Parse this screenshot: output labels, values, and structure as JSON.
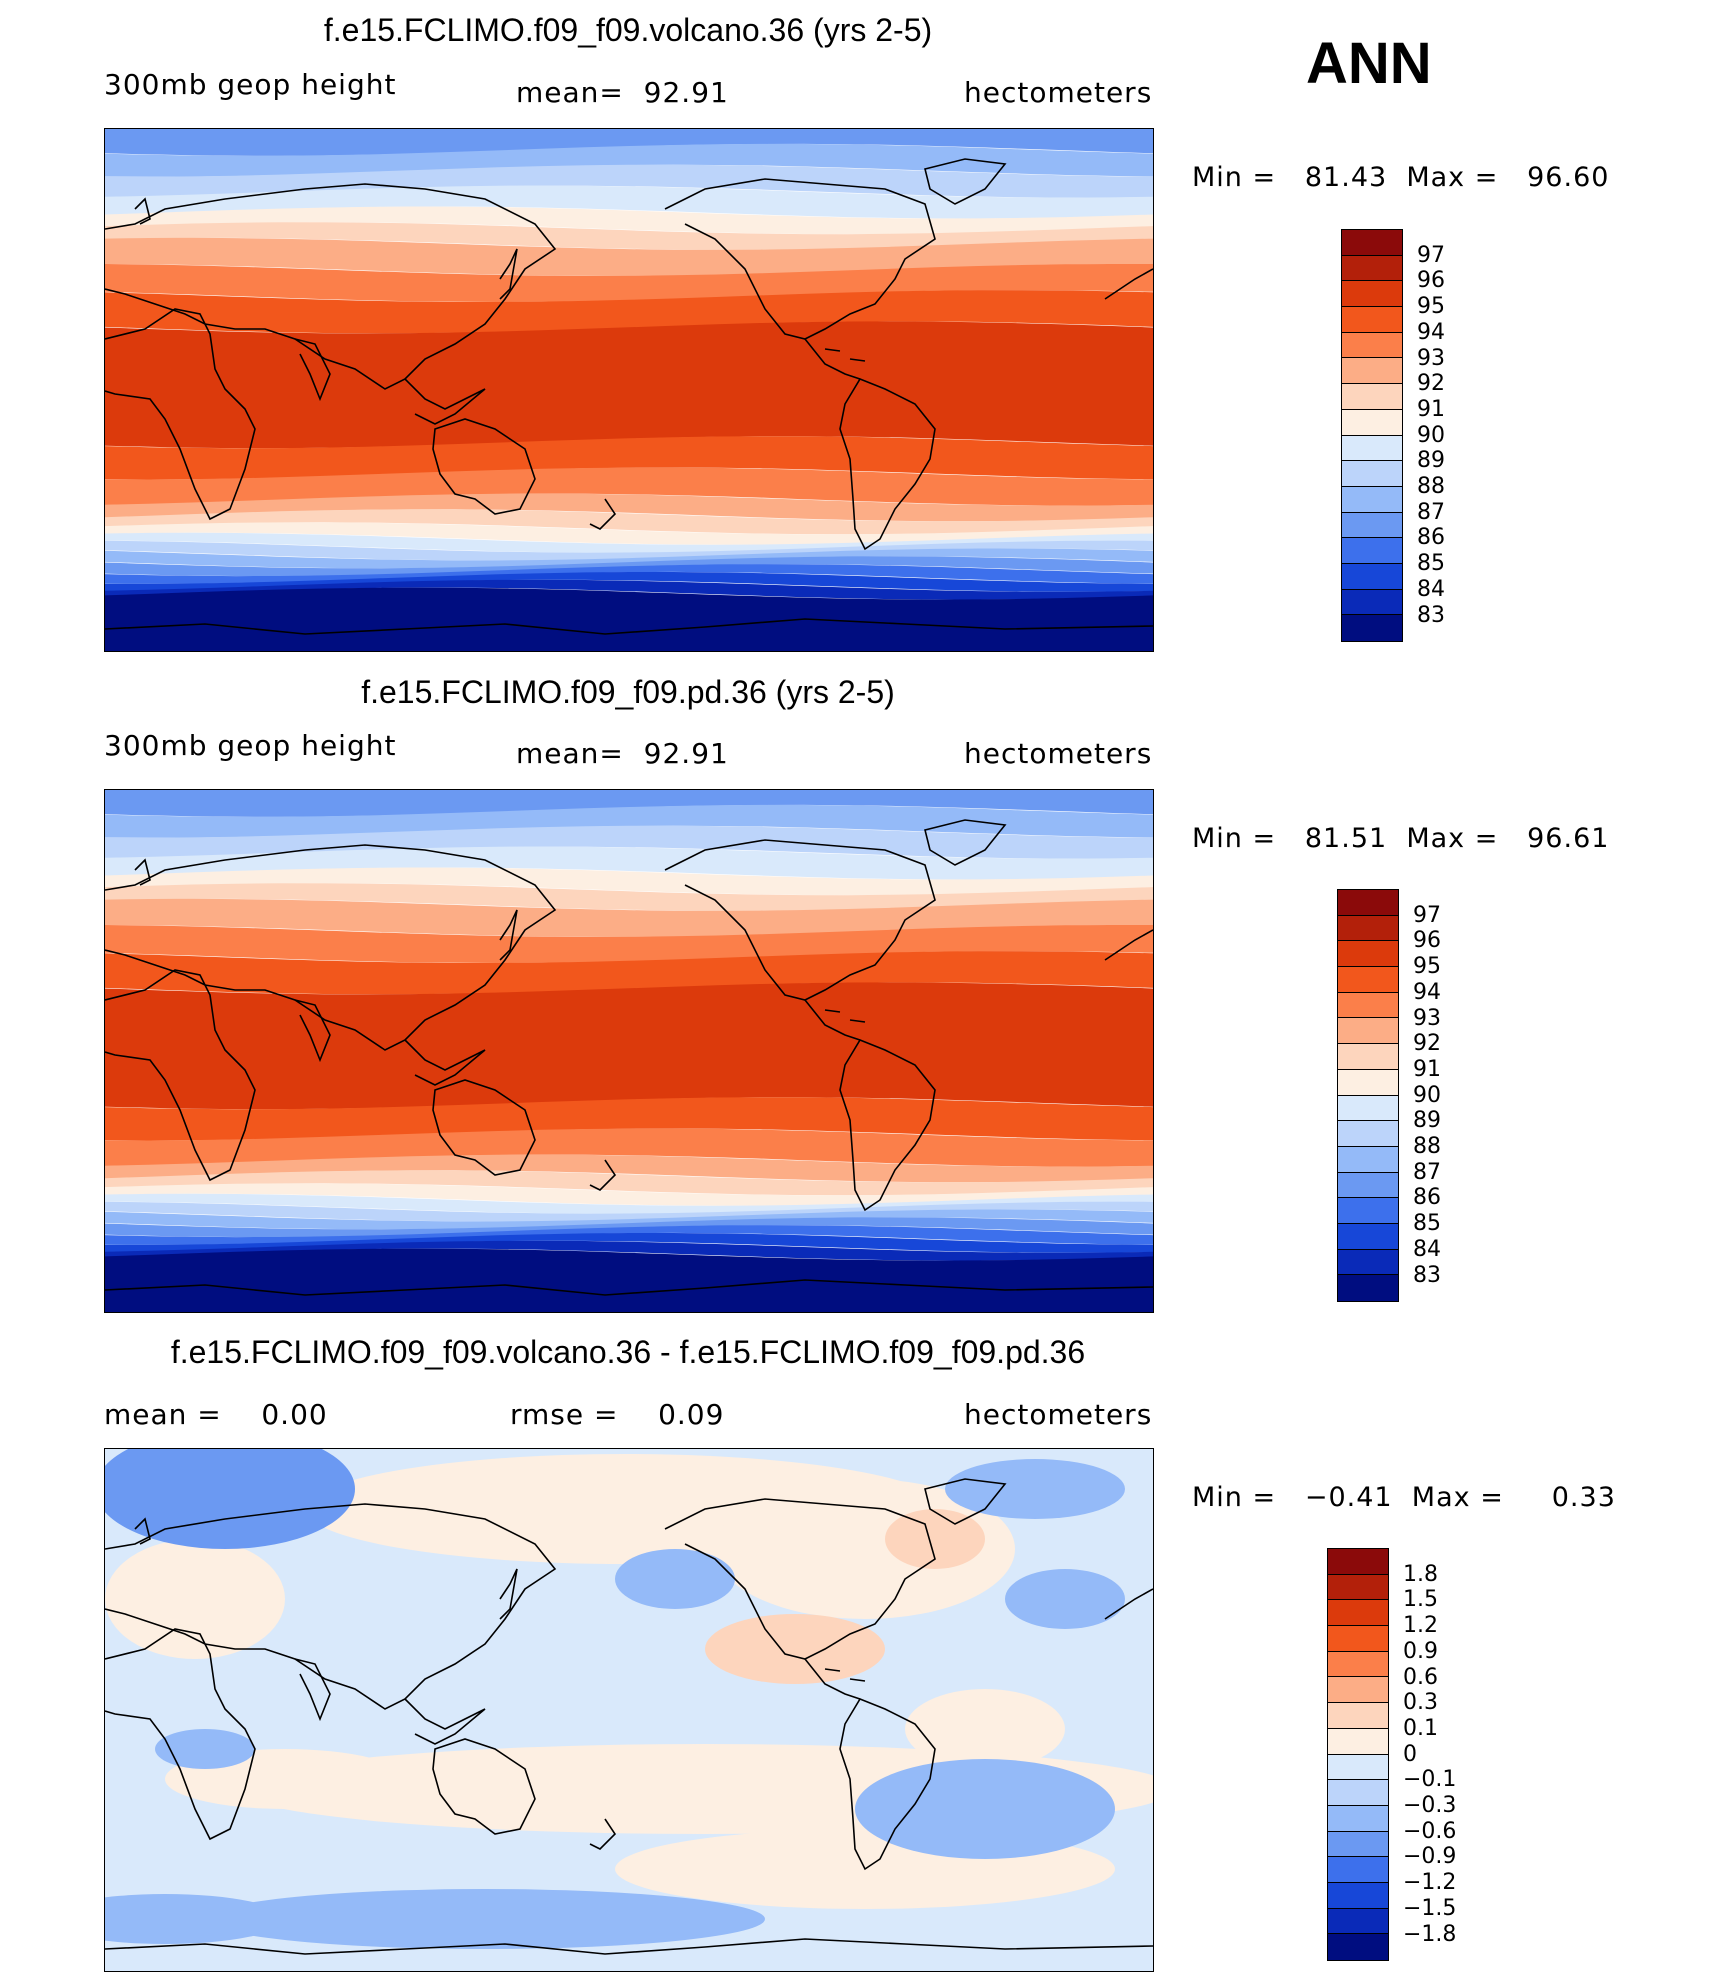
{
  "season_label": "ANN",
  "units": "hectometers",
  "variable": "300mb geop height",
  "panels": [
    {
      "title": "f.e15.FCLIMO.f09_f09.volcano.36 (yrs 2-5)",
      "left_label": "300mb geop height",
      "stat_text": "mean=  92.91",
      "units_text": "hectometers",
      "min_label": "Min =",
      "min_value": "81.43",
      "max_label": "Max =",
      "max_value": "96.60",
      "colorbar_labels": [
        "97",
        "96",
        "95",
        "94",
        "93",
        "92",
        "91",
        "90",
        "89",
        "88",
        "87",
        "86",
        "85",
        "84",
        "83"
      ]
    },
    {
      "title": "f.e15.FCLIMO.f09_f09.pd.36 (yrs 2-5)",
      "left_label": "300mb geop height",
      "stat_text": "mean=  92.91",
      "units_text": "hectometers",
      "min_label": "Min =",
      "min_value": "81.51",
      "max_label": "Max =",
      "max_value": "96.61",
      "colorbar_labels": [
        "97",
        "96",
        "95",
        "94",
        "93",
        "92",
        "91",
        "90",
        "89",
        "88",
        "87",
        "86",
        "85",
        "84",
        "83"
      ]
    },
    {
      "title": "f.e15.FCLIMO.f09_f09.volcano.36 - f.e15.FCLIMO.f09_f09.pd.36",
      "left_label": "mean =    0.00",
      "stat_text": "rmse =    0.09",
      "units_text": "hectometers",
      "min_label": "Min =",
      "min_value": "−0.41",
      "max_label": "Max =",
      "max_value": "0.33",
      "colorbar_labels": [
        "1.8",
        "1.5",
        "1.2",
        "0.9",
        "0.6",
        "0.3",
        "0.1",
        "0",
        "−0.1",
        "−0.3",
        "−0.6",
        "−0.9",
        "−1.2",
        "−1.5",
        "−1.8"
      ]
    }
  ],
  "colors": {
    "abs_scale": [
      "#8b0a0a",
      "#b3200a",
      "#dc3a0c",
      "#f2571c",
      "#fb7f4a",
      "#fcad86",
      "#fdd5bd",
      "#fdefe2",
      "#d9e9fb",
      "#bcd4fa",
      "#94baf8",
      "#6b99f2",
      "#3d70ec",
      "#1747d8",
      "#0a2ab8",
      "#000d80"
    ],
    "diff_scale": [
      "#8b0a0a",
      "#b3200a",
      "#dc3a0c",
      "#f2571c",
      "#fb7f4a",
      "#fcad86",
      "#fdd5bd",
      "#fdefe2",
      "#d9e9fb",
      "#bcd4fa",
      "#94baf8",
      "#6b99f2",
      "#3d70ec",
      "#1747d8",
      "#0a2ab8",
      "#000d80"
    ]
  }
}
